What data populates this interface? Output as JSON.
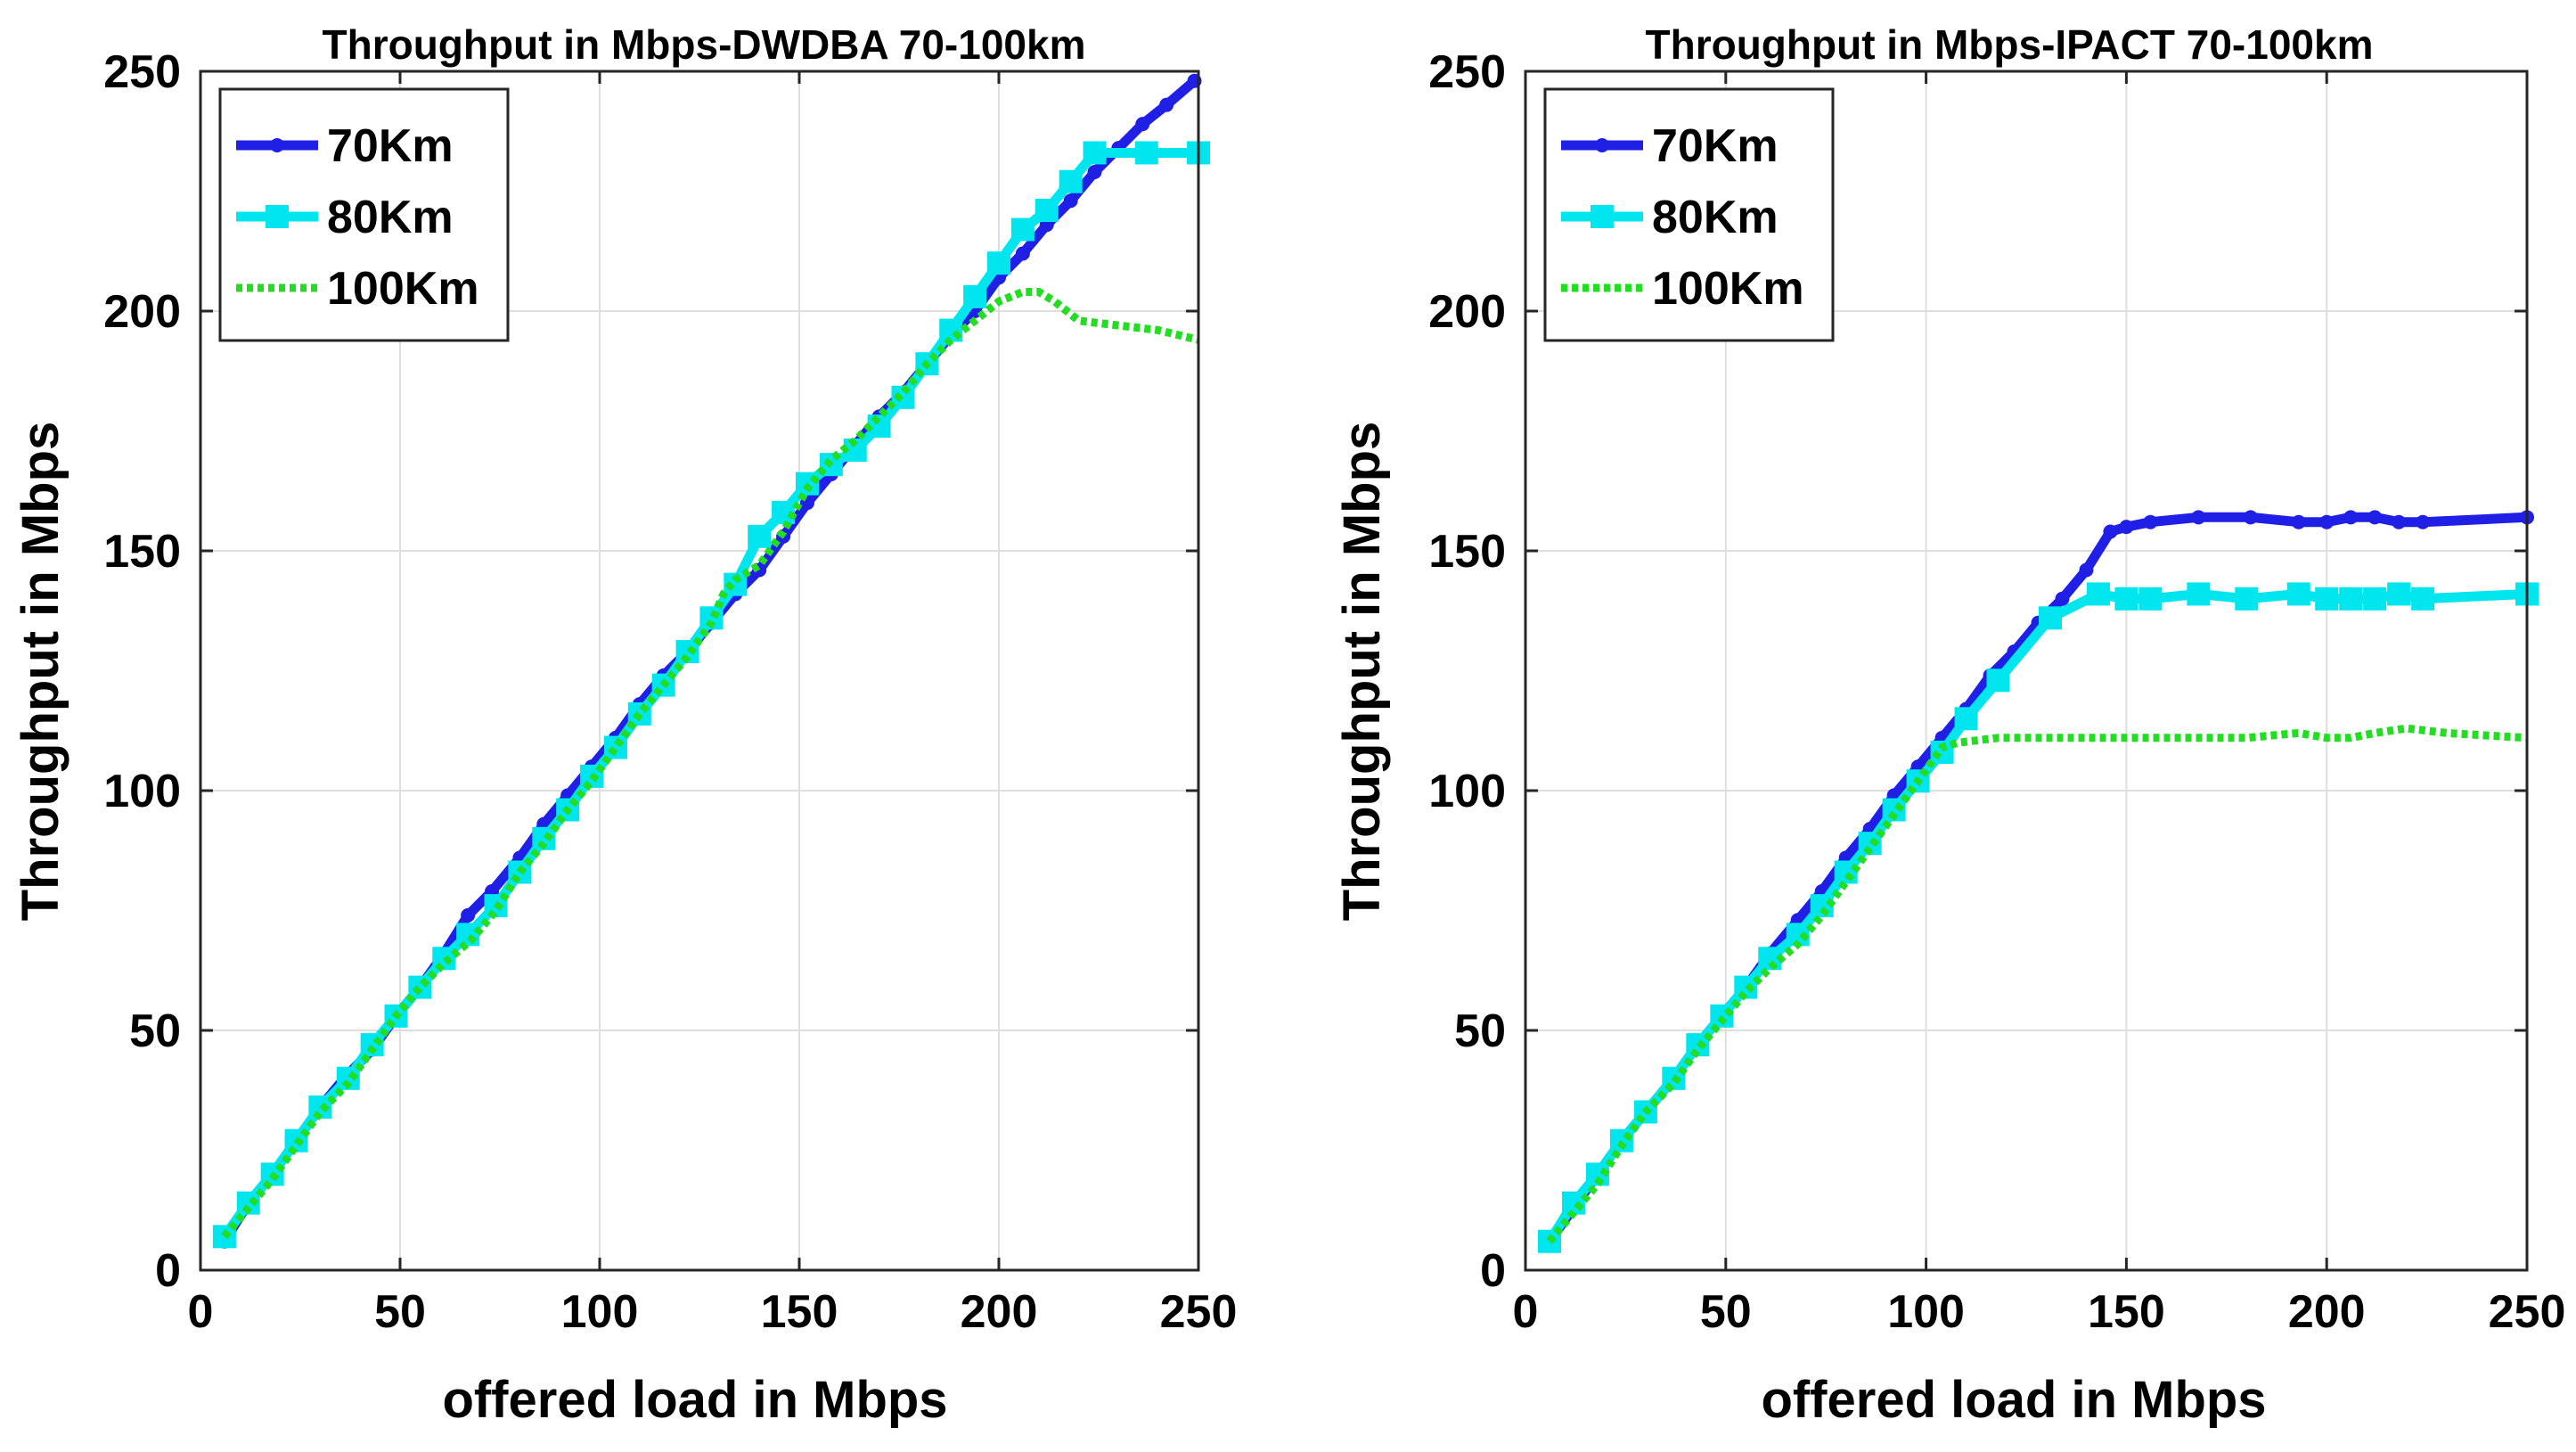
{
  "chart_data": [
    {
      "type": "line",
      "title": "Throughput in Mbps-DWDBA 70-100km",
      "xlabel": "offered load in Mbps",
      "ylabel": "Throughput in Mbps",
      "xlim": [
        0,
        250
      ],
      "ylim": [
        0,
        250
      ],
      "xticks": [
        0,
        50,
        100,
        150,
        200,
        250
      ],
      "yticks": [
        0,
        50,
        100,
        150,
        200,
        250
      ],
      "grid": true,
      "legend_position": "top-left",
      "series": [
        {
          "name": "70Km",
          "color": "#1f1fe6",
          "style": "solid",
          "marker": "dot",
          "x": [
            6,
            12,
            18,
            24,
            30,
            36,
            43,
            49,
            55,
            61,
            67,
            73,
            80,
            86,
            92,
            98,
            104,
            110,
            116,
            122,
            128,
            134,
            140,
            146,
            152,
            158,
            164,
            170,
            176,
            182,
            188,
            194,
            200,
            206,
            212,
            218,
            224,
            230,
            236,
            242,
            249
          ],
          "y": [
            6,
            14,
            20,
            27,
            34,
            40,
            46,
            53,
            59,
            66,
            74,
            79,
            86,
            93,
            99,
            105,
            111,
            118,
            124,
            129,
            135,
            141,
            146,
            153,
            160,
            166,
            172,
            178,
            183,
            189,
            195,
            200,
            207,
            212,
            218,
            223,
            229,
            234,
            239,
            243,
            248
          ]
        },
        {
          "name": "80Km",
          "color": "#00e5ee",
          "style": "solid",
          "marker": "square",
          "x": [
            6,
            12,
            18,
            24,
            30,
            37,
            43,
            49,
            55,
            61,
            67,
            74,
            80,
            86,
            92,
            98,
            104,
            110,
            116,
            122,
            128,
            134,
            140,
            146,
            152,
            158,
            164,
            170,
            176,
            182,
            188,
            194,
            200,
            206,
            212,
            218,
            224,
            237,
            250
          ],
          "y": [
            7,
            14,
            20,
            27,
            34,
            40,
            47,
            53,
            59,
            65,
            70,
            76,
            83,
            90,
            96,
            103,
            109,
            116,
            122,
            129,
            136,
            143,
            153,
            158,
            164,
            168,
            171,
            176,
            182,
            189,
            196,
            203,
            210,
            217,
            221,
            227,
            233,
            233,
            233
          ]
        },
        {
          "name": "100Km",
          "color": "#22dd22",
          "style": "dotted",
          "marker": "none",
          "x": [
            6,
            12,
            18,
            24,
            30,
            37,
            43,
            49,
            55,
            61,
            68,
            74,
            80,
            86,
            92,
            98,
            104,
            110,
            116,
            122,
            128,
            131,
            134,
            140,
            146,
            152,
            158,
            164,
            170,
            176,
            182,
            188,
            194,
            200,
            206,
            210,
            214,
            220,
            230,
            240,
            250
          ],
          "y": [
            7,
            13,
            19,
            26,
            33,
            39,
            46,
            53,
            59,
            64,
            69,
            75,
            83,
            89,
            96,
            102,
            109,
            116,
            122,
            128,
            135,
            141,
            144,
            147,
            154,
            163,
            169,
            173,
            178,
            183,
            189,
            194,
            198,
            202,
            204,
            204,
            202,
            198,
            197,
            196,
            194
          ]
        }
      ]
    },
    {
      "type": "line",
      "title": "Throughput in Mbps-IPACT 70-100km",
      "xlabel": "offered load in Mbps",
      "ylabel": "Throughput in Mbps",
      "xlim": [
        0,
        250
      ],
      "ylim": [
        0,
        250
      ],
      "xticks": [
        0,
        50,
        100,
        150,
        200,
        250
      ],
      "yticks": [
        0,
        50,
        100,
        150,
        200,
        250
      ],
      "grid": true,
      "legend_position": "top-left",
      "series": [
        {
          "name": "70Km",
          "color": "#1f1fe6",
          "style": "solid",
          "marker": "dot",
          "x": [
            6,
            12,
            18,
            24,
            30,
            37,
            43,
            49,
            55,
            61,
            68,
            74,
            80,
            86,
            92,
            98,
            104,
            110,
            116,
            122,
            128,
            134,
            140,
            146,
            150,
            156,
            168,
            181,
            193,
            200,
            206,
            212,
            218,
            224,
            250
          ],
          "y": [
            6,
            13,
            20,
            27,
            33,
            40,
            47,
            53,
            59,
            66,
            73,
            79,
            86,
            92,
            99,
            105,
            111,
            117,
            124,
            129,
            135,
            140,
            146,
            154,
            155,
            156,
            157,
            157,
            156,
            156,
            157,
            157,
            156,
            156,
            157
          ]
        },
        {
          "name": "80Km",
          "color": "#00e5ee",
          "style": "solid",
          "marker": "square",
          "x": [
            6,
            12,
            18,
            24,
            30,
            37,
            43,
            49,
            55,
            61,
            68,
            74,
            80,
            86,
            92,
            98,
            104,
            110,
            118,
            131,
            143,
            150,
            156,
            168,
            180,
            193,
            200,
            206,
            212,
            218,
            224,
            250
          ],
          "y": [
            6,
            14,
            20,
            27,
            33,
            40,
            47,
            53,
            59,
            65,
            70,
            76,
            83,
            89,
            96,
            102,
            108,
            115,
            123,
            136,
            141,
            140,
            140,
            141,
            140,
            141,
            140,
            140,
            140,
            141,
            140,
            141
          ]
        },
        {
          "name": "100Km",
          "color": "#22dd22",
          "style": "dotted",
          "marker": "none",
          "x": [
            6,
            12,
            18,
            24,
            30,
            37,
            43,
            49,
            55,
            61,
            68,
            74,
            80,
            86,
            92,
            98,
            104,
            108,
            118,
            130,
            143,
            156,
            168,
            180,
            193,
            200,
            206,
            212,
            220,
            230,
            250
          ],
          "y": [
            6,
            12,
            18,
            26,
            33,
            39,
            46,
            52,
            58,
            63,
            68,
            74,
            81,
            88,
            95,
            102,
            109,
            110,
            111,
            111,
            111,
            111,
            111,
            111,
            112,
            111,
            111,
            112,
            113,
            112,
            111
          ]
        }
      ]
    }
  ]
}
